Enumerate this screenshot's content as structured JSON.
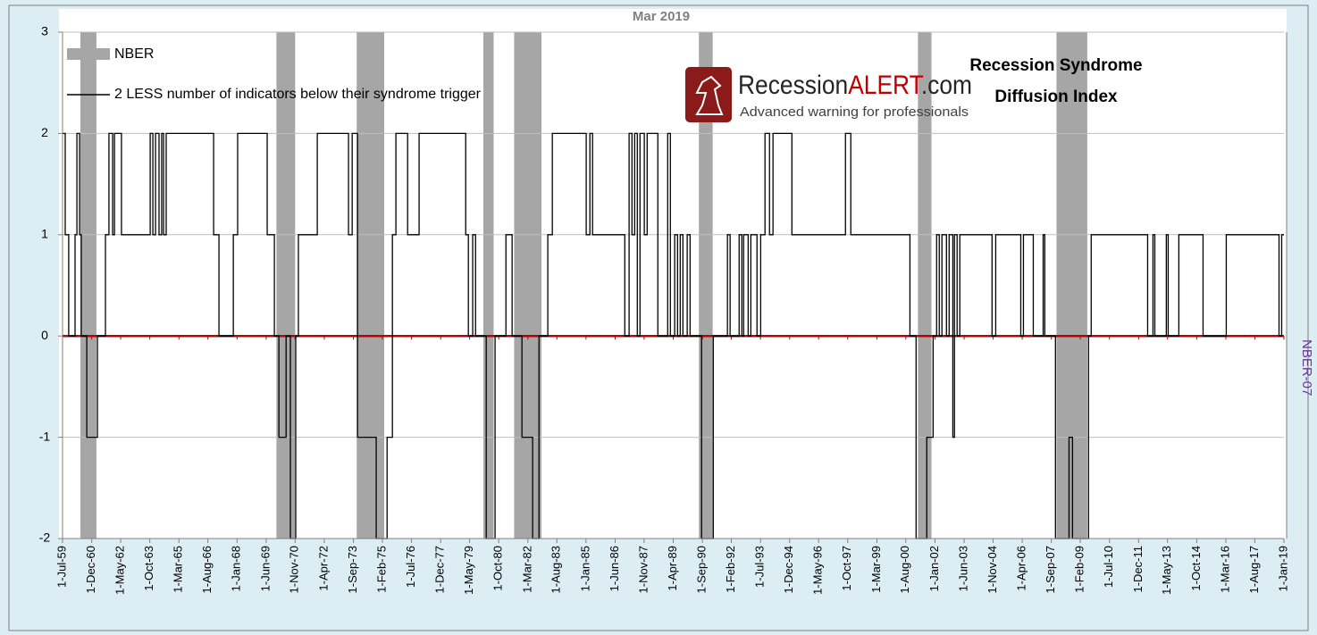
{
  "chart_data": {
    "type": "line",
    "title": "Mar 2019",
    "annotation": [
      "Recession Syndrome",
      "Diffusion Index"
    ],
    "logo": {
      "name_parts": [
        "Recession",
        "ALERT",
        ".com"
      ],
      "tagline": "Advanced warning for professionals"
    },
    "y2_label": "NBER-07",
    "xlim": [
      1959.5,
      2019.0
    ],
    "ylim": [
      -2,
      3
    ],
    "yticks": [
      -2,
      -1,
      0,
      1,
      2,
      3
    ],
    "xticks": [
      {
        "value": 1959.5,
        "label": "1-Jul-59"
      },
      {
        "value": 1960.92,
        "label": "1-Dec-60"
      },
      {
        "value": 1962.33,
        "label": "1-May-62"
      },
      {
        "value": 1963.75,
        "label": "1-Oct-63"
      },
      {
        "value": 1965.17,
        "label": "1-Mar-65"
      },
      {
        "value": 1966.58,
        "label": "1-Aug-66"
      },
      {
        "value": 1968.0,
        "label": "1-Jan-68"
      },
      {
        "value": 1969.42,
        "label": "1-Jun-69"
      },
      {
        "value": 1970.83,
        "label": "1-Nov-70"
      },
      {
        "value": 1972.25,
        "label": "1-Apr-72"
      },
      {
        "value": 1973.67,
        "label": "1-Sep-73"
      },
      {
        "value": 1975.08,
        "label": "1-Feb-75"
      },
      {
        "value": 1976.5,
        "label": "1-Jul-76"
      },
      {
        "value": 1977.92,
        "label": "1-Dec-77"
      },
      {
        "value": 1979.33,
        "label": "1-May-79"
      },
      {
        "value": 1980.75,
        "label": "1-Oct-80"
      },
      {
        "value": 1982.17,
        "label": "1-Mar-82"
      },
      {
        "value": 1983.58,
        "label": "1-Aug-83"
      },
      {
        "value": 1985.0,
        "label": "1-Jan-85"
      },
      {
        "value": 1986.42,
        "label": "1-Jun-86"
      },
      {
        "value": 1987.83,
        "label": "1-Nov-87"
      },
      {
        "value": 1989.25,
        "label": "1-Apr-89"
      },
      {
        "value": 1990.67,
        "label": "1-Sep-90"
      },
      {
        "value": 1992.08,
        "label": "1-Feb-92"
      },
      {
        "value": 1993.5,
        "label": "1-Jul-93"
      },
      {
        "value": 1994.92,
        "label": "1-Dec-94"
      },
      {
        "value": 1996.33,
        "label": "1-May-96"
      },
      {
        "value": 1997.75,
        "label": "1-Oct-97"
      },
      {
        "value": 1999.17,
        "label": "1-Mar-99"
      },
      {
        "value": 2000.58,
        "label": "1-Aug-00"
      },
      {
        "value": 2002.0,
        "label": "1-Jan-02"
      },
      {
        "value": 2003.42,
        "label": "1-Jun-03"
      },
      {
        "value": 2004.83,
        "label": "1-Nov-04"
      },
      {
        "value": 2006.25,
        "label": "1-Apr-06"
      },
      {
        "value": 2007.67,
        "label": "1-Sep-07"
      },
      {
        "value": 2009.08,
        "label": "1-Feb-09"
      },
      {
        "value": 2010.5,
        "label": "1-Jul-10"
      },
      {
        "value": 2011.92,
        "label": "1-Dec-11"
      },
      {
        "value": 2013.33,
        "label": "1-May-13"
      },
      {
        "value": 2014.75,
        "label": "1-Oct-14"
      },
      {
        "value": 2016.17,
        "label": "1-Mar-16"
      },
      {
        "value": 2017.58,
        "label": "1-Aug-17"
      },
      {
        "value": 2019.0,
        "label": "1-Jan-19"
      }
    ],
    "grid": true,
    "zero_line_color": "#c00000",
    "series": [
      {
        "name": "NBER",
        "color": "#a6a6a6",
        "periods": [
          [
            1960.37,
            1961.15
          ],
          [
            1969.92,
            1970.83
          ],
          [
            1973.83,
            1975.17
          ],
          [
            1980.0,
            1980.5
          ],
          [
            1981.5,
            1982.83
          ],
          [
            1990.5,
            1991.17
          ],
          [
            2001.17,
            2001.83
          ],
          [
            2007.92,
            2009.42
          ]
        ]
      },
      {
        "name": "2 LESS number of indicators below their syndrome trigger",
        "color": "#000000",
        "x": [
          1959.5,
          1959.63,
          1959.63,
          1959.8,
          1959.8,
          1960.11,
          1960.11,
          1960.2,
          1960.2,
          1960.33,
          1960.33,
          1960.41,
          1960.41,
          1960.68,
          1960.68,
          1961.2,
          1961.2,
          1961.59,
          1961.59,
          1961.76,
          1961.76,
          1961.94,
          1961.94,
          1962.03,
          1962.03,
          1962.37,
          1962.37,
          1963.77,
          1963.77,
          1963.9,
          1963.9,
          1964.03,
          1964.03,
          1964.2,
          1964.2,
          1964.33,
          1964.33,
          1964.42,
          1964.42,
          1964.55,
          1964.55,
          1966.86,
          1966.86,
          1967.12,
          1967.12,
          1967.82,
          1967.82,
          1968.03,
          1968.03,
          1969.47,
          1969.47,
          1969.82,
          1969.82,
          1970.04,
          1970.04,
          1970.39,
          1970.39,
          1970.6,
          1970.6,
          1970.86,
          1970.86,
          1970.99,
          1970.99,
          1971.91,
          1971.91,
          1973.43,
          1973.43,
          1973.61,
          1973.61,
          1973.87,
          1973.87,
          1974.78,
          1974.78,
          1975.31,
          1975.31,
          1975.57,
          1975.57,
          1975.74,
          1975.74,
          1976.31,
          1976.31,
          1976.87,
          1976.87,
          1979.14,
          1979.14,
          1979.27,
          1979.27,
          1979.48,
          1979.48,
          1979.62,
          1979.62,
          1980.14,
          1980.14,
          1980.57,
          1980.57,
          1981.1,
          1981.1,
          1981.4,
          1981.4,
          1981.88,
          1981.88,
          1982.4,
          1982.4,
          1982.71,
          1982.71,
          1983.14,
          1983.14,
          1983.36,
          1983.36,
          1985.01,
          1985.01,
          1985.19,
          1985.19,
          1985.32,
          1985.32,
          1986.89,
          1986.89,
          1987.1,
          1987.1,
          1987.24,
          1987.24,
          1987.37,
          1987.37,
          1987.5,
          1987.5,
          1987.63,
          1987.63,
          1987.84,
          1987.84,
          1987.98,
          1987.98,
          1988.5,
          1988.5,
          1988.98,
          1988.98,
          1989.11,
          1989.11,
          1989.32,
          1989.32,
          1989.46,
          1989.46,
          1989.59,
          1989.59,
          1989.72,
          1989.72,
          1989.93,
          1989.93,
          1990.07,
          1990.07,
          1990.63,
          1990.63,
          1991.2,
          1991.2,
          1991.89,
          1991.89,
          1992.02,
          1992.02,
          1992.46,
          1992.46,
          1992.59,
          1992.59,
          1992.68,
          1992.68,
          1992.9,
          1992.9,
          1993.03,
          1993.03,
          1993.33,
          1993.33,
          1993.51,
          1993.51,
          1993.72,
          1993.72,
          1993.94,
          1993.94,
          1994.11,
          1994.11,
          1995.03,
          1995.03,
          1997.64,
          1997.64,
          1997.9,
          1997.9,
          2000.78,
          2000.78,
          2001.08,
          2001.08,
          2001.6,
          2001.6,
          2001.91,
          2001.91,
          2002.08,
          2002.08,
          2002.21,
          2002.21,
          2002.34,
          2002.34,
          2002.56,
          2002.56,
          2002.69,
          2002.69,
          2002.87,
          2002.87,
          2002.95,
          2002.95,
          2003.08,
          2003.08,
          2003.21,
          2003.21,
          2004.78,
          2004.78,
          2004.96,
          2004.96,
          2006.18,
          2006.18,
          2006.31,
          2006.31,
          2006.79,
          2006.79,
          2007.27,
          2007.27,
          2007.35,
          2007.35,
          2007.87,
          2007.87,
          2008.53,
          2008.53,
          2008.7,
          2008.7,
          2009.48,
          2009.48,
          2009.61,
          2009.61,
          2012.36,
          2012.36,
          2012.62,
          2012.62,
          2012.71,
          2012.71,
          2013.27,
          2013.27,
          2013.36,
          2013.36,
          2013.88,
          2013.88,
          2015.06,
          2015.06,
          2016.19,
          2016.19,
          2018.76,
          2018.76,
          2018.89,
          2018.89,
          2019.0
        ],
        "values": [
          2,
          2,
          1,
          1,
          0,
          0,
          1,
          1,
          2,
          2,
          1,
          1,
          0,
          0,
          -1,
          -1,
          0,
          0,
          1,
          1,
          2,
          2,
          1,
          1,
          2,
          2,
          1,
          1,
          2,
          2,
          1,
          1,
          2,
          2,
          1,
          1,
          2,
          2,
          1,
          1,
          2,
          2,
          1,
          1,
          0,
          0,
          1,
          1,
          2,
          2,
          1,
          1,
          0,
          0,
          -1,
          -1,
          0,
          0,
          -2,
          -2,
          0,
          0,
          1,
          1,
          2,
          2,
          1,
          1,
          2,
          2,
          -1,
          -1,
          -2,
          -2,
          -1,
          -1,
          1,
          1,
          2,
          2,
          1,
          1,
          2,
          2,
          1,
          1,
          0,
          0,
          1,
          1,
          0,
          0,
          -2,
          -2,
          0,
          0,
          1,
          1,
          0,
          0,
          -1,
          -1,
          -2,
          -2,
          0,
          0,
          1,
          1,
          2,
          2,
          1,
          1,
          2,
          2,
          1,
          1,
          0,
          0,
          2,
          2,
          1,
          1,
          2,
          2,
          0,
          0,
          2,
          2,
          1,
          1,
          2,
          2,
          0,
          0,
          2,
          2,
          0,
          0,
          1,
          1,
          0,
          0,
          1,
          1,
          0,
          0,
          1,
          1,
          0,
          0,
          -2,
          -2,
          0,
          0,
          1,
          1,
          0,
          0,
          1,
          1,
          0,
          0,
          1,
          1,
          0,
          0,
          1,
          1,
          0,
          0,
          1,
          1,
          2,
          2,
          1,
          1,
          2,
          2,
          1,
          1,
          2,
          2,
          1,
          1,
          0,
          0,
          -2,
          -2,
          -1,
          -1,
          0,
          0,
          1,
          1,
          0,
          0,
          1,
          1,
          0,
          0,
          1,
          1,
          -1,
          -1,
          1,
          1,
          0,
          0,
          1,
          1,
          0,
          0,
          1,
          1,
          0,
          0,
          1,
          1,
          0,
          0,
          1,
          1,
          0,
          0,
          -2,
          -2,
          -1,
          -1,
          -2,
          -2,
          0,
          0,
          1,
          1,
          0,
          0,
          1,
          1,
          0,
          0,
          1,
          1,
          0,
          0,
          1,
          1,
          0,
          0,
          1,
          1,
          0,
          0,
          1,
          1
        ]
      }
    ]
  }
}
